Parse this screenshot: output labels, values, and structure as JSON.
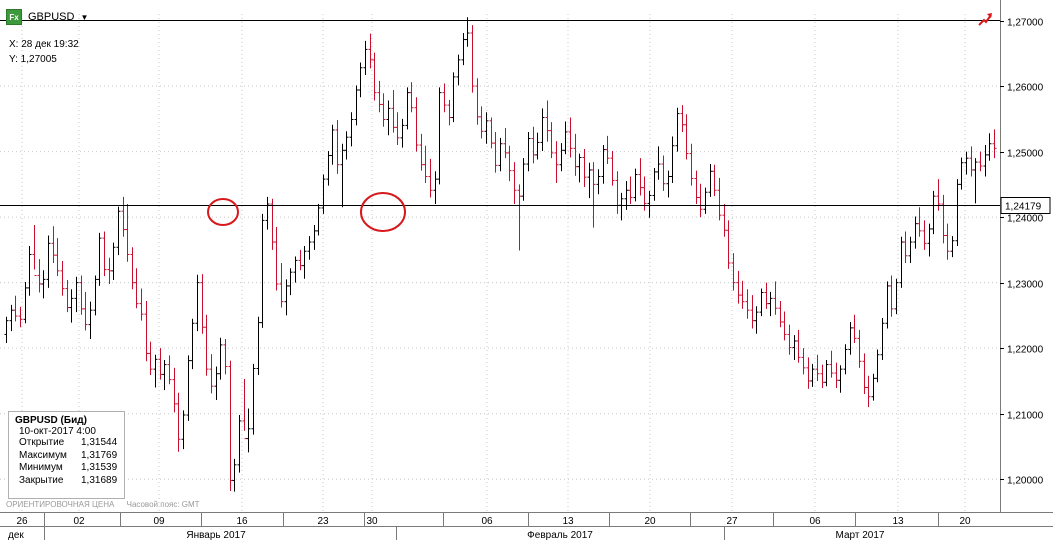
{
  "header": {
    "fx_badge": "Fx",
    "symbol": "GBPUSD",
    "dropdown_icon": "caret-down-icon",
    "trend_icon": "trend-arrow-icon"
  },
  "crosshair": {
    "x_label": "X: 28 дек 19:32",
    "y_label": "Y: 1,27005"
  },
  "info_box": {
    "title": "GBPUSD (Бид)",
    "date": "10-окт-2017 4:00",
    "rows": [
      {
        "label": "Открытие",
        "value": "1,31544"
      },
      {
        "label": "Максимум",
        "value": "1,31769"
      },
      {
        "label": "Минимум",
        "value": "1,31539"
      },
      {
        "label": "Закрытие",
        "value": "1,31689"
      }
    ]
  },
  "footer": {
    "price_type": "ОРИЕНТИРОВОЧНАЯ ЦЕНА",
    "timezone": "Часовой пояс: GMT"
  },
  "colors": {
    "up": "#000000",
    "down": "#c8102e",
    "annotation": "#d7191c",
    "grid": "#c9c9c9"
  },
  "chart_data": {
    "type": "ohlc",
    "symbol": "GBPUSD",
    "ylim": [
      1.195,
      1.271
    ],
    "y_ticks": [
      {
        "value": 1.27,
        "label": "1,27000"
      },
      {
        "value": 1.26,
        "label": "1,26000"
      },
      {
        "value": 1.25,
        "label": "1,25000"
      },
      {
        "value": 1.24,
        "label": "1,24000"
      },
      {
        "value": 1.23,
        "label": "1,23000"
      },
      {
        "value": 1.22,
        "label": "1,22000"
      },
      {
        "value": 1.21,
        "label": "1,21000"
      },
      {
        "value": 1.2,
        "label": "1,20000"
      }
    ],
    "x_day_ticks": [
      "26",
      "02",
      "09",
      "16",
      "23",
      "30",
      "06",
      "13",
      "20",
      "27",
      "06",
      "13",
      "20"
    ],
    "x_month_labels": [
      "дек",
      "Январь 2017",
      "Февраль 2017",
      "Март 2017"
    ],
    "horizontal_lines": [
      {
        "value": 1.27005
      },
      {
        "value": 1.24179,
        "label": "1,24179"
      }
    ],
    "bars": [
      [
        1.2221,
        1.2248,
        1.2208,
        1.2242
      ],
      [
        1.2242,
        1.2266,
        1.2226,
        1.2258
      ],
      [
        1.2258,
        1.228,
        1.2241,
        1.2249
      ],
      [
        1.2249,
        1.2263,
        1.2232,
        1.2244
      ],
      [
        1.2244,
        1.2301,
        1.2238,
        1.2292
      ],
      [
        1.2292,
        1.2356,
        1.228,
        1.2343
      ],
      [
        1.2343,
        1.2388,
        1.232,
        1.2311
      ],
      [
        1.2311,
        1.2336,
        1.2285,
        1.2298
      ],
      [
        1.2298,
        1.2319,
        1.2276,
        1.2305
      ],
      [
        1.2305,
        1.2372,
        1.2292,
        1.236
      ],
      [
        1.236,
        1.2386,
        1.233,
        1.2342
      ],
      [
        1.2342,
        1.2368,
        1.231,
        1.2318
      ],
      [
        1.2318,
        1.2333,
        1.228,
        1.2291
      ],
      [
        1.2291,
        1.2304,
        1.2255,
        1.2262
      ],
      [
        1.2262,
        1.229,
        1.2239,
        1.2276
      ],
      [
        1.2276,
        1.2309,
        1.2255,
        1.23
      ],
      [
        1.23,
        1.2311,
        1.2251,
        1.226
      ],
      [
        1.226,
        1.2286,
        1.2227,
        1.2236
      ],
      [
        1.2236,
        1.2271,
        1.2214,
        1.2258
      ],
      [
        1.2258,
        1.2311,
        1.225,
        1.2305
      ],
      [
        1.2305,
        1.2376,
        1.2295,
        1.2368
      ],
      [
        1.2368,
        1.2378,
        1.231,
        1.232
      ],
      [
        1.232,
        1.2338,
        1.2298,
        1.2318
      ],
      [
        1.2318,
        1.2361,
        1.2304,
        1.2354
      ],
      [
        1.2354,
        1.2416,
        1.2342,
        1.2409
      ],
      [
        1.2409,
        1.2431,
        1.237,
        1.2381
      ],
      [
        1.2381,
        1.242,
        1.2332,
        1.2343
      ],
      [
        1.2343,
        1.2354,
        1.229,
        1.23
      ],
      [
        1.23,
        1.2322,
        1.2261,
        1.2268
      ],
      [
        1.2268,
        1.2291,
        1.2242,
        1.2252
      ],
      [
        1.2252,
        1.2272,
        1.218,
        1.2192
      ],
      [
        1.2192,
        1.221,
        1.2159,
        1.2168
      ],
      [
        1.2168,
        1.219,
        1.214,
        1.2183
      ],
      [
        1.2183,
        1.22,
        1.2152,
        1.216
      ],
      [
        1.216,
        1.2182,
        1.2136,
        1.2175
      ],
      [
        1.2175,
        1.2189,
        1.2145,
        1.2152
      ],
      [
        1.2152,
        1.217,
        1.2102,
        1.2115
      ],
      [
        1.2115,
        1.2132,
        1.2042,
        1.2061
      ],
      [
        1.2061,
        1.2105,
        1.2046,
        1.2098
      ],
      [
        1.2098,
        1.2189,
        1.2089,
        1.2181
      ],
      [
        1.2181,
        1.2245,
        1.2168,
        1.2238
      ],
      [
        1.2238,
        1.2312,
        1.2226,
        1.23
      ],
      [
        1.23,
        1.2313,
        1.2222,
        1.2232
      ],
      [
        1.2232,
        1.2251,
        1.2158,
        1.2168
      ],
      [
        1.2168,
        1.2191,
        1.2131,
        1.2142
      ],
      [
        1.2142,
        1.2172,
        1.2121,
        1.2161
      ],
      [
        1.2161,
        1.2216,
        1.2152,
        1.2205
      ],
      [
        1.2205,
        1.2214,
        1.216,
        1.2172
      ],
      [
        1.2172,
        1.2181,
        1.1982,
        1.1998
      ],
      [
        1.1998,
        1.2031,
        1.1981,
        1.2022
      ],
      [
        1.2022,
        1.2098,
        1.201,
        1.2089
      ],
      [
        1.2089,
        1.2153,
        1.2074,
        1.2062
      ],
      [
        1.2062,
        1.2108,
        1.2041,
        1.2077
      ],
      [
        1.2077,
        1.2176,
        1.2068,
        1.2169
      ],
      [
        1.2169,
        1.2248,
        1.2159,
        1.2239
      ],
      [
        1.2239,
        1.2405,
        1.2231,
        1.2395
      ],
      [
        1.2395,
        1.2431,
        1.2381,
        1.242
      ],
      [
        1.242,
        1.2428,
        1.235,
        1.2362
      ],
      [
        1.2362,
        1.2385,
        1.2288,
        1.2298
      ],
      [
        1.2298,
        1.233,
        1.2262,
        1.2271
      ],
      [
        1.2271,
        1.2305,
        1.225,
        1.2295
      ],
      [
        1.2295,
        1.2322,
        1.2281,
        1.2316
      ],
      [
        1.2316,
        1.234,
        1.23,
        1.2334
      ],
      [
        1.2334,
        1.235,
        1.2319,
        1.2326
      ],
      [
        1.2326,
        1.2356,
        1.2306,
        1.2348
      ],
      [
        1.2348,
        1.2371,
        1.2335,
        1.2362
      ],
      [
        1.2362,
        1.2388,
        1.235,
        1.2379
      ],
      [
        1.2379,
        1.242,
        1.2372,
        1.2414
      ],
      [
        1.2414,
        1.2465,
        1.2405,
        1.2458
      ],
      [
        1.2458,
        1.2501,
        1.2448,
        1.2494
      ],
      [
        1.2494,
        1.2541,
        1.248,
        1.2533
      ],
      [
        1.2533,
        1.2548,
        1.2466,
        1.248
      ],
      [
        1.248,
        1.2512,
        1.2415,
        1.2502
      ],
      [
        1.2502,
        1.2531,
        1.2488,
        1.2522
      ],
      [
        1.2522,
        1.256,
        1.2508,
        1.2549
      ],
      [
        1.2549,
        1.2601,
        1.254,
        1.2594
      ],
      [
        1.2594,
        1.2636,
        1.2583,
        1.2628
      ],
      [
        1.2628,
        1.2669,
        1.2617,
        1.2656
      ],
      [
        1.2656,
        1.268,
        1.2627,
        1.264
      ],
      [
        1.264,
        1.2651,
        1.2578,
        1.259
      ],
      [
        1.259,
        1.2608,
        1.256,
        1.2572
      ],
      [
        1.2572,
        1.2589,
        1.2538,
        1.2549
      ],
      [
        1.2549,
        1.2578,
        1.2525,
        1.2566
      ],
      [
        1.2566,
        1.2594,
        1.2529,
        1.2537
      ],
      [
        1.2537,
        1.256,
        1.251,
        1.2521
      ],
      [
        1.2521,
        1.255,
        1.2506,
        1.254
      ],
      [
        1.254,
        1.2598,
        1.2534,
        1.259
      ],
      [
        1.259,
        1.2606,
        1.256,
        1.2567
      ],
      [
        1.2567,
        1.2583,
        1.25,
        1.251
      ],
      [
        1.251,
        1.2527,
        1.2471,
        1.248
      ],
      [
        1.248,
        1.2509,
        1.2452,
        1.2462
      ],
      [
        1.2462,
        1.2489,
        1.243,
        1.2441
      ],
      [
        1.2441,
        1.247,
        1.242,
        1.2458
      ],
      [
        1.2458,
        1.2598,
        1.245,
        1.259
      ],
      [
        1.259,
        1.2604,
        1.256,
        1.2571
      ],
      [
        1.2571,
        1.2579,
        1.254,
        1.2552
      ],
      [
        1.2552,
        1.2621,
        1.2545,
        1.2614
      ],
      [
        1.2614,
        1.2648,
        1.2601,
        1.264
      ],
      [
        1.264,
        1.2681,
        1.2632,
        1.2671
      ],
      [
        1.2671,
        1.2705,
        1.266,
        1.2681
      ],
      [
        1.2681,
        1.2693,
        1.259,
        1.26
      ],
      [
        1.26,
        1.2612,
        1.2541,
        1.2553
      ],
      [
        1.2553,
        1.2569,
        1.252,
        1.2531
      ],
      [
        1.2531,
        1.256,
        1.2512,
        1.2547
      ],
      [
        1.2547,
        1.2552,
        1.2505,
        1.2513
      ],
      [
        1.2513,
        1.253,
        1.2468,
        1.2479
      ],
      [
        1.2479,
        1.2521,
        1.247,
        1.2512
      ],
      [
        1.2512,
        1.2536,
        1.249,
        1.2498
      ],
      [
        1.2498,
        1.2509,
        1.2455,
        1.2471
      ],
      [
        1.2471,
        1.2484,
        1.242,
        1.2441
      ],
      [
        1.2441,
        1.245,
        1.2349,
        1.2432
      ],
      [
        1.2432,
        1.249,
        1.2425,
        1.2481
      ],
      [
        1.2481,
        1.253,
        1.247,
        1.252
      ],
      [
        1.252,
        1.2538,
        1.2482,
        1.2495
      ],
      [
        1.2495,
        1.2529,
        1.2488,
        1.2514
      ],
      [
        1.2514,
        1.2566,
        1.2501,
        1.2552
      ],
      [
        1.2552,
        1.2578,
        1.2515,
        1.2532
      ],
      [
        1.2532,
        1.2545,
        1.249,
        1.2498
      ],
      [
        1.2498,
        1.2516,
        1.2452,
        1.248
      ],
      [
        1.248,
        1.2513,
        1.247,
        1.2502
      ],
      [
        1.2502,
        1.2546,
        1.2496,
        1.253
      ],
      [
        1.253,
        1.2552,
        1.2491,
        1.2505
      ],
      [
        1.2505,
        1.2527,
        1.2463,
        1.2477
      ],
      [
        1.2477,
        1.2497,
        1.2453,
        1.2491
      ],
      [
        1.2491,
        1.2504,
        1.2446,
        1.2461
      ],
      [
        1.2461,
        1.2483,
        1.2429,
        1.2472
      ],
      [
        1.2472,
        1.2484,
        1.2384,
        1.245
      ],
      [
        1.245,
        1.2473,
        1.2435,
        1.2462
      ],
      [
        1.2462,
        1.251,
        1.2451,
        1.2503
      ],
      [
        1.2503,
        1.2524,
        1.2481,
        1.249
      ],
      [
        1.249,
        1.2501,
        1.2448,
        1.2456
      ],
      [
        1.2456,
        1.247,
        1.2405,
        1.2418
      ],
      [
        1.2418,
        1.2437,
        1.2395,
        1.2428
      ],
      [
        1.2428,
        1.2455,
        1.2411,
        1.2441
      ],
      [
        1.2441,
        1.2462,
        1.242,
        1.243
      ],
      [
        1.243,
        1.2474,
        1.2424,
        1.2465
      ],
      [
        1.2465,
        1.249,
        1.2433,
        1.2445
      ],
      [
        1.2445,
        1.2462,
        1.241,
        1.2421
      ],
      [
        1.2421,
        1.244,
        1.2399,
        1.2433
      ],
      [
        1.2433,
        1.2475,
        1.2425,
        1.2469
      ],
      [
        1.2469,
        1.2508,
        1.2457,
        1.2481
      ],
      [
        1.2481,
        1.2494,
        1.244,
        1.2451
      ],
      [
        1.2451,
        1.2471,
        1.243,
        1.2462
      ],
      [
        1.2462,
        1.2523,
        1.2452,
        1.2509
      ],
      [
        1.2509,
        1.2567,
        1.25,
        1.2558
      ],
      [
        1.2558,
        1.2571,
        1.253,
        1.2541
      ],
      [
        1.2541,
        1.2557,
        1.2488,
        1.2497
      ],
      [
        1.2497,
        1.2512,
        1.2448,
        1.2459
      ],
      [
        1.2459,
        1.2471,
        1.242,
        1.243
      ],
      [
        1.243,
        1.2451,
        1.24,
        1.2412
      ],
      [
        1.2412,
        1.2445,
        1.2405,
        1.2438
      ],
      [
        1.2438,
        1.2481,
        1.2431,
        1.247
      ],
      [
        1.247,
        1.248,
        1.2432,
        1.2441
      ],
      [
        1.2441,
        1.246,
        1.2395,
        1.2403
      ],
      [
        1.2403,
        1.242,
        1.237,
        1.238
      ],
      [
        1.238,
        1.2395,
        1.2321,
        1.233
      ],
      [
        1.233,
        1.2345,
        1.2288,
        1.23
      ],
      [
        1.23,
        1.2318,
        1.2268,
        1.2281
      ],
      [
        1.2281,
        1.2303,
        1.226,
        1.2271
      ],
      [
        1.2271,
        1.229,
        1.2245,
        1.2258
      ],
      [
        1.2258,
        1.2281,
        1.223,
        1.2242
      ],
      [
        1.2242,
        1.2264,
        1.2222,
        1.2255
      ],
      [
        1.2255,
        1.2291,
        1.2249,
        1.2285
      ],
      [
        1.2285,
        1.23,
        1.226,
        1.2268
      ],
      [
        1.2268,
        1.2286,
        1.2249,
        1.2276
      ],
      [
        1.2276,
        1.2302,
        1.2251,
        1.2261
      ],
      [
        1.2261,
        1.2272,
        1.2232,
        1.224
      ],
      [
        1.224,
        1.2256,
        1.2212,
        1.2221
      ],
      [
        1.2221,
        1.2236,
        1.219,
        1.2201
      ],
      [
        1.2201,
        1.222,
        1.2182,
        1.2211
      ],
      [
        1.2211,
        1.2228,
        1.2178,
        1.2186
      ],
      [
        1.2186,
        1.22,
        1.216,
        1.217
      ],
      [
        1.217,
        1.2186,
        1.2138,
        1.215
      ],
      [
        1.215,
        1.2176,
        1.2141,
        1.2168
      ],
      [
        1.2168,
        1.219,
        1.215,
        1.2161
      ],
      [
        1.2161,
        1.2175,
        1.2139,
        1.2148
      ],
      [
        1.2148,
        1.2182,
        1.2142,
        1.2175
      ],
      [
        1.2175,
        1.2196,
        1.2155,
        1.2162
      ],
      [
        1.2162,
        1.2178,
        1.2139,
        1.2151
      ],
      [
        1.2151,
        1.2174,
        1.2132,
        1.2168
      ],
      [
        1.2168,
        1.2206,
        1.216,
        1.2198
      ],
      [
        1.2198,
        1.224,
        1.219,
        1.2231
      ],
      [
        1.2231,
        1.2251,
        1.2208,
        1.2215
      ],
      [
        1.2215,
        1.2228,
        1.217,
        1.218
      ],
      [
        1.218,
        1.2192,
        1.213,
        1.214
      ],
      [
        1.214,
        1.2158,
        1.211,
        1.2126
      ],
      [
        1.2126,
        1.2161,
        1.212,
        1.2154
      ],
      [
        1.2154,
        1.2198,
        1.2148,
        1.219
      ],
      [
        1.219,
        1.2246,
        1.2182,
        1.2238
      ],
      [
        1.2238,
        1.2302,
        1.223,
        1.2295
      ],
      [
        1.2295,
        1.2311,
        1.2248,
        1.226
      ],
      [
        1.226,
        1.2306,
        1.2252,
        1.23
      ],
      [
        1.23,
        1.237,
        1.2292,
        1.2362
      ],
      [
        1.2362,
        1.2378,
        1.233,
        1.2341
      ],
      [
        1.2341,
        1.237,
        1.233,
        1.2362
      ],
      [
        1.2362,
        1.2401,
        1.2352,
        1.239
      ],
      [
        1.239,
        1.2415,
        1.237,
        1.2379
      ],
      [
        1.2379,
        1.2395,
        1.235,
        1.236
      ],
      [
        1.236,
        1.239,
        1.234,
        1.2382
      ],
      [
        1.2382,
        1.244,
        1.2374,
        1.2432
      ],
      [
        1.2432,
        1.2458,
        1.241,
        1.242
      ],
      [
        1.242,
        1.2434,
        1.236,
        1.2372
      ],
      [
        1.2372,
        1.239,
        1.2335,
        1.2348
      ],
      [
        1.2348,
        1.2371,
        1.2339,
        1.2364
      ],
      [
        1.2364,
        1.2458,
        1.2356,
        1.245
      ],
      [
        1.245,
        1.2491,
        1.2442,
        1.2483
      ],
      [
        1.2483,
        1.25,
        1.2465,
        1.249
      ],
      [
        1.249,
        1.2508,
        1.2462,
        1.2472
      ],
      [
        1.2472,
        1.249,
        1.2421,
        1.2484
      ],
      [
        1.2484,
        1.25,
        1.247,
        1.2478
      ],
      [
        1.2478,
        1.251,
        1.2462,
        1.2495
      ],
      [
        1.2495,
        1.2528,
        1.2486,
        1.2512
      ],
      [
        1.2512,
        1.2534,
        1.249,
        1.2505
      ]
    ]
  }
}
